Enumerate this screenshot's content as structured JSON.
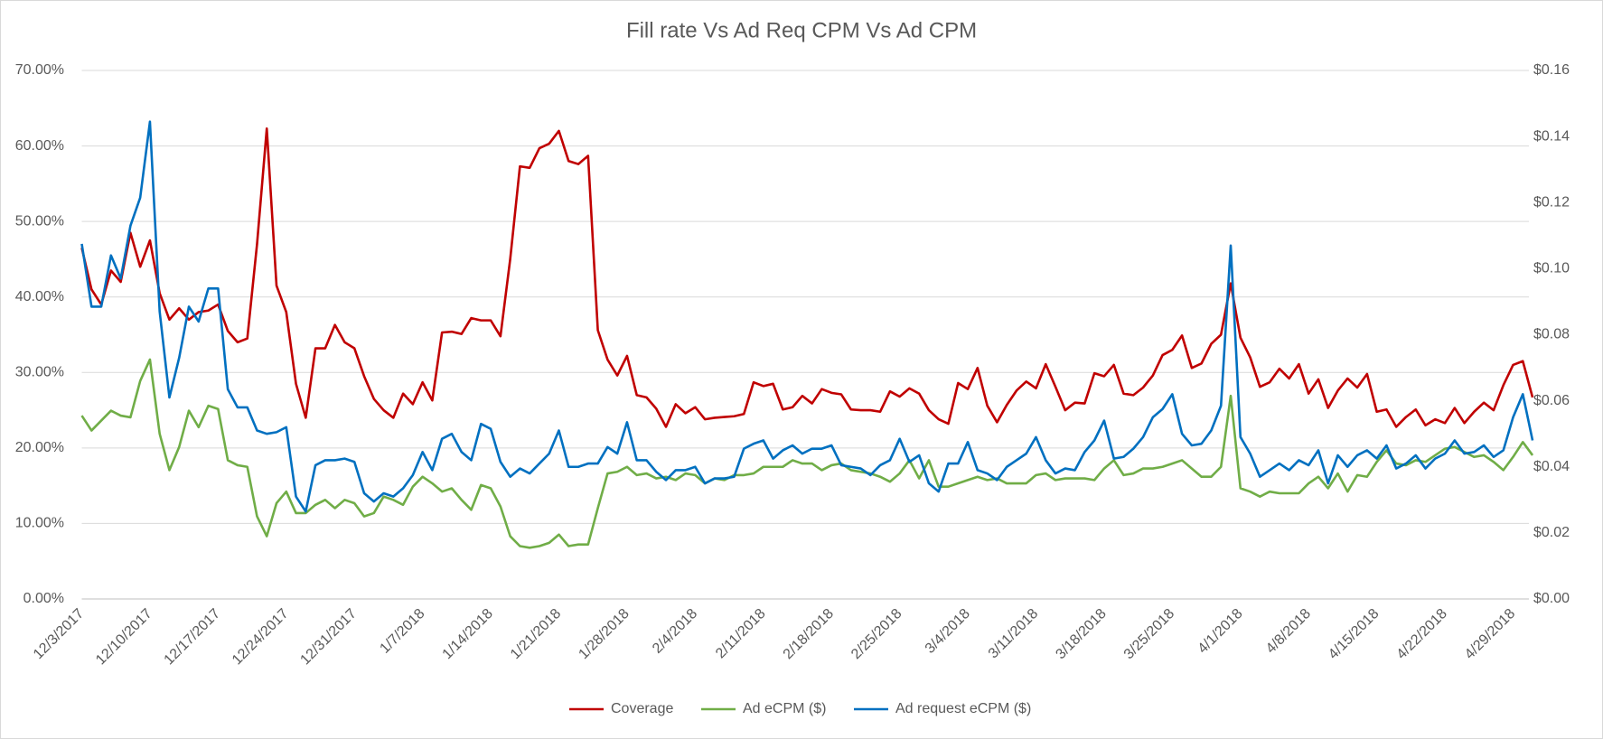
{
  "chart_data": {
    "type": "line",
    "title": "Fill rate Vs Ad Req CPM Vs Ad CPM",
    "categories": [
      "12/3/2017",
      null,
      null,
      null,
      null,
      null,
      null,
      "12/10/2017",
      null,
      null,
      null,
      null,
      null,
      null,
      "12/17/2017",
      null,
      null,
      null,
      null,
      null,
      null,
      "12/24/2017",
      null,
      null,
      null,
      null,
      null,
      null,
      "12/31/2017",
      null,
      null,
      null,
      null,
      null,
      null,
      "1/7/2018",
      null,
      null,
      null,
      null,
      null,
      null,
      "1/14/2018",
      null,
      null,
      null,
      null,
      null,
      null,
      "1/21/2018",
      null,
      null,
      null,
      null,
      null,
      null,
      "1/28/2018",
      null,
      null,
      null,
      null,
      null,
      null,
      "2/4/2018",
      null,
      null,
      null,
      null,
      null,
      null,
      "2/11/2018",
      null,
      null,
      null,
      null,
      null,
      null,
      "2/18/2018",
      null,
      null,
      null,
      null,
      null,
      null,
      "2/25/2018",
      null,
      null,
      null,
      null,
      null,
      null,
      "3/4/2018",
      null,
      null,
      null,
      null,
      null,
      null,
      "3/11/2018",
      null,
      null,
      null,
      null,
      null,
      null,
      "3/18/2018",
      null,
      null,
      null,
      null,
      null,
      null,
      "3/25/2018",
      null,
      null,
      null,
      null,
      null,
      null,
      "4/1/2018",
      null,
      null,
      null,
      null,
      null,
      null,
      "4/8/2018",
      null,
      null,
      null,
      null,
      null,
      null,
      "4/15/2018",
      null,
      null,
      null,
      null,
      null,
      null,
      "4/22/2018",
      null,
      null,
      null,
      null,
      null,
      null,
      "4/29/2018",
      null,
      null
    ],
    "series": [
      {
        "name": "Coverage",
        "color": "#c00000",
        "values": [
          46.5,
          41,
          39,
          43.5,
          42,
          48.5,
          44,
          47.5,
          40.5,
          37,
          38.5,
          37,
          38,
          38.2,
          39,
          35.5,
          34,
          34.5,
          47,
          62.3,
          41.5,
          38,
          28.5,
          24,
          33.2,
          33.2,
          36.3,
          34,
          33.2,
          29.5,
          26.5,
          25,
          24,
          27.2,
          25.8,
          28.7,
          26.3,
          35.3,
          35.4,
          35.1,
          37.2,
          36.9,
          36.9,
          34.8,
          45,
          57.3,
          57.1,
          59.7,
          60.3,
          62,
          58,
          57.6,
          58.7,
          35.6,
          31.7,
          29.6,
          32.2,
          27,
          26.7,
          25.2,
          22.8,
          25.8,
          24.6,
          25.4,
          23.8,
          24,
          24.1,
          24.2,
          24.5,
          28.7,
          28.2,
          28.5,
          25.1,
          25.4,
          26.9,
          25.9,
          27.8,
          27.3,
          27.1,
          25.1,
          25,
          25,
          24.8,
          27.5,
          26.8,
          27.9,
          27.2,
          25,
          23.8,
          23.2,
          28.6,
          27.8,
          30.6,
          25.6,
          23.4,
          25.7,
          27.6,
          28.8,
          27.9,
          31.1,
          28.1,
          25,
          26,
          25.9,
          29.9,
          29.5,
          31,
          27.2,
          27,
          28,
          29.6,
          32.3,
          33,
          34.9,
          30.6,
          31.2,
          33.8,
          35,
          41.8,
          34.6,
          32,
          28.1,
          28.7,
          30.5,
          29.2,
          31.1,
          27.2,
          29.1,
          25.3,
          27.6,
          29.2,
          28,
          29.8,
          24.8,
          25.1,
          22.8,
          24.1,
          25.1,
          23,
          23.8,
          23.3,
          25.3,
          23.3,
          24.8,
          26,
          25,
          28.3,
          31,
          31.5,
          26.7
        ]
      },
      {
        "name": "Ad eCPM ($)",
        "color": "#70ad47",
        "axis": "y2",
        "values": [
          0.0555,
          0.051,
          0.054,
          0.057,
          0.0555,
          0.055,
          0.066,
          0.0725,
          0.05,
          0.039,
          0.046,
          0.057,
          0.052,
          0.0585,
          0.0575,
          0.042,
          0.0405,
          0.04,
          0.025,
          0.019,
          0.029,
          0.0325,
          0.026,
          0.026,
          0.0285,
          0.03,
          0.0275,
          0.03,
          0.029,
          0.025,
          0.026,
          0.031,
          0.03,
          0.0285,
          0.034,
          0.037,
          0.035,
          0.0325,
          0.0335,
          0.03,
          0.027,
          0.0345,
          0.0335,
          0.028,
          0.019,
          0.016,
          0.0155,
          0.016,
          0.017,
          0.0195,
          0.016,
          0.0165,
          0.0165,
          0.0275,
          0.038,
          0.0385,
          0.04,
          0.0375,
          0.038,
          0.0365,
          0.037,
          0.036,
          0.038,
          0.0375,
          0.035,
          0.0365,
          0.036,
          0.0375,
          0.0375,
          0.038,
          0.04,
          0.04,
          0.04,
          0.042,
          0.041,
          0.041,
          0.039,
          0.0405,
          0.041,
          0.039,
          0.0385,
          0.038,
          0.037,
          0.0355,
          0.038,
          0.042,
          0.0365,
          0.042,
          0.034,
          0.034,
          0.035,
          0.036,
          0.037,
          0.036,
          0.0365,
          0.035,
          0.035,
          0.035,
          0.0375,
          0.038,
          0.036,
          0.0365,
          0.0365,
          0.0365,
          0.036,
          0.0395,
          0.042,
          0.0375,
          0.038,
          0.0395,
          0.0395,
          0.04,
          0.041,
          0.042,
          0.0395,
          0.037,
          0.037,
          0.04,
          0.0615,
          0.0335,
          0.0325,
          0.031,
          0.0325,
          0.032,
          0.032,
          0.032,
          0.035,
          0.037,
          0.0335,
          0.038,
          0.0325,
          0.0375,
          0.037,
          0.0415,
          0.045,
          0.041,
          0.0405,
          0.042,
          0.0415,
          0.0435,
          0.0455,
          0.046,
          0.0445,
          0.043,
          0.0435,
          0.0415,
          0.039,
          0.043,
          0.0475,
          0.0435
        ]
      },
      {
        "name": "Ad request eCPM ($)",
        "color": "#0070c0",
        "axis": "y2",
        "values": [
          0.1075,
          0.0885,
          0.0885,
          0.104,
          0.097,
          0.113,
          0.1215,
          0.1445,
          0.087,
          0.061,
          0.073,
          0.0885,
          0.084,
          0.094,
          0.094,
          0.0635,
          0.058,
          0.058,
          0.051,
          0.05,
          0.0505,
          0.052,
          0.031,
          0.0265,
          0.0405,
          0.042,
          0.042,
          0.0425,
          0.0415,
          0.032,
          0.0295,
          0.032,
          0.031,
          0.0335,
          0.0375,
          0.0445,
          0.039,
          0.0485,
          0.05,
          0.0445,
          0.042,
          0.053,
          0.0515,
          0.0415,
          0.037,
          0.0395,
          0.038,
          0.041,
          0.044,
          0.051,
          0.04,
          0.04,
          0.041,
          0.041,
          0.046,
          0.044,
          0.0535,
          0.042,
          0.042,
          0.0385,
          0.036,
          0.039,
          0.039,
          0.04,
          0.035,
          0.0365,
          0.0365,
          0.037,
          0.0455,
          0.047,
          0.048,
          0.0425,
          0.045,
          0.0465,
          0.044,
          0.0455,
          0.0455,
          0.0465,
          0.0405,
          0.04,
          0.0395,
          0.0375,
          0.0405,
          0.042,
          0.0485,
          0.0415,
          0.0435,
          0.035,
          0.0325,
          0.041,
          0.041,
          0.0475,
          0.039,
          0.038,
          0.036,
          0.04,
          0.042,
          0.044,
          0.049,
          0.042,
          0.038,
          0.0395,
          0.039,
          0.0445,
          0.048,
          0.054,
          0.0425,
          0.043,
          0.0455,
          0.049,
          0.055,
          0.0575,
          0.062,
          0.05,
          0.0465,
          0.047,
          0.051,
          0.0585,
          0.107,
          0.049,
          0.044,
          0.037,
          0.039,
          0.041,
          0.039,
          0.042,
          0.0405,
          0.045,
          0.035,
          0.0435,
          0.04,
          0.0435,
          0.045,
          0.0425,
          0.0465,
          0.0395,
          0.041,
          0.0435,
          0.0395,
          0.0425,
          0.044,
          0.048,
          0.044,
          0.0445,
          0.0465,
          0.043,
          0.045,
          0.055,
          0.062,
          0.048
        ]
      }
    ],
    "ylim": [
      0,
      70
    ],
    "yticks": [
      {
        "value": 0,
        "label": "0.00%"
      },
      {
        "value": 10,
        "label": "10.00%"
      },
      {
        "value": 20,
        "label": "20.00%"
      },
      {
        "value": 30,
        "label": "30.00%"
      },
      {
        "value": 40,
        "label": "40.00%"
      },
      {
        "value": 50,
        "label": "50.00%"
      },
      {
        "value": 60,
        "label": "60.00%"
      },
      {
        "value": 70,
        "label": "70.00%"
      }
    ],
    "y2lim": [
      0,
      0.16
    ],
    "y2ticks": [
      {
        "value": 0,
        "label": "$0.00"
      },
      {
        "value": 0.02,
        "label": "$0.02"
      },
      {
        "value": 0.04,
        "label": "$0.04"
      },
      {
        "value": 0.06,
        "label": "$0.06"
      },
      {
        "value": 0.08,
        "label": "$0.08"
      },
      {
        "value": 0.1,
        "label": "$0.10"
      },
      {
        "value": 0.12,
        "label": "$0.12"
      },
      {
        "value": 0.14,
        "label": "$0.14"
      },
      {
        "value": 0.16,
        "label": "$0.16"
      }
    ],
    "grid": true,
    "legend": "bottom"
  }
}
